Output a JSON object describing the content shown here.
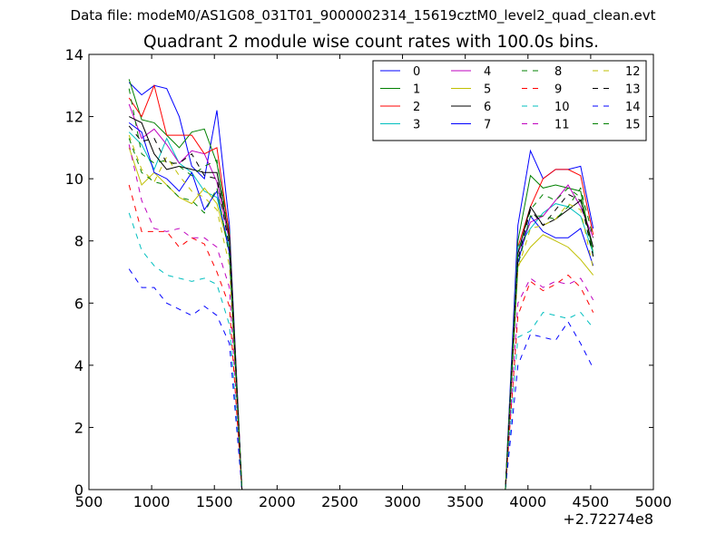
{
  "header": {
    "data_file": "Data file: modeM0/AS1G08_031T01_9000002314_15619cztM0_level2_quad_clean.evt"
  },
  "chart_data": {
    "type": "line",
    "title": "Quadrant 2 module wise count rates with 100.0s bins.",
    "xlabel": "",
    "ylabel": "",
    "xlim": [
      500,
      5000
    ],
    "ylim": [
      0,
      14
    ],
    "x_offset_label": "+2.72274e8",
    "xticks": [
      500,
      1000,
      1500,
      2000,
      2500,
      3000,
      3500,
      4000,
      4500,
      5000
    ],
    "yticks": [
      0,
      2,
      4,
      6,
      8,
      10,
      12,
      14
    ],
    "grid": false,
    "legend_position": "top-right",
    "legend_columns": 4,
    "x": [
      820,
      920,
      1020,
      1120,
      1220,
      1320,
      1420,
      1520,
      1620,
      1720,
      1820,
      3820,
      3920,
      4020,
      4120,
      4220,
      4320,
      4420,
      4520
    ],
    "series": [
      {
        "name": "0",
        "color": "#0000ff",
        "dash": "solid",
        "values": [
          13.1,
          12.7,
          13.0,
          12.9,
          12.0,
          10.4,
          10.0,
          12.2,
          8.5,
          0.0,
          0.0,
          0.0,
          8.5,
          10.9,
          10.0,
          10.3,
          10.3,
          10.4,
          8.4
        ]
      },
      {
        "name": "1",
        "color": "#008000",
        "dash": "solid",
        "values": [
          13.2,
          11.9,
          11.8,
          11.4,
          11.0,
          11.5,
          11.6,
          10.5,
          8.3,
          0.0,
          0.0,
          0.0,
          8.0,
          10.1,
          9.7,
          9.8,
          9.7,
          9.6,
          7.6
        ]
      },
      {
        "name": "2",
        "color": "#ff0000",
        "dash": "solid",
        "values": [
          12.6,
          12.0,
          13.0,
          11.4,
          11.4,
          11.4,
          10.8,
          11.0,
          8.2,
          0.0,
          0.0,
          0.0,
          7.8,
          9.1,
          10.0,
          10.3,
          10.3,
          10.1,
          8.2
        ]
      },
      {
        "name": "3",
        "color": "#00bfbf",
        "dash": "solid",
        "values": [
          11.5,
          11.1,
          10.3,
          11.3,
          10.5,
          10.2,
          9.6,
          9.4,
          7.8,
          0.0,
          0.0,
          0.0,
          7.8,
          8.4,
          8.9,
          9.2,
          9.1,
          8.8,
          7.6
        ]
      },
      {
        "name": "4",
        "color": "#bf00bf",
        "dash": "solid",
        "values": [
          12.4,
          11.3,
          11.6,
          11.1,
          10.5,
          10.9,
          10.8,
          9.9,
          8.0,
          0.0,
          0.0,
          0.0,
          7.6,
          8.6,
          8.8,
          9.3,
          9.8,
          9.1,
          8.1
        ]
      },
      {
        "name": "5",
        "color": "#bfbf00",
        "dash": "solid",
        "values": [
          11.0,
          9.8,
          10.2,
          9.8,
          9.4,
          9.2,
          9.7,
          9.2,
          7.7,
          0.0,
          0.0,
          0.0,
          7.2,
          7.8,
          8.2,
          8.0,
          7.8,
          7.4,
          6.9
        ]
      },
      {
        "name": "6",
        "color": "#000000",
        "dash": "solid",
        "values": [
          12.0,
          11.8,
          10.8,
          10.3,
          10.4,
          10.3,
          10.2,
          10.2,
          8.1,
          0.0,
          0.0,
          0.0,
          7.6,
          9.1,
          8.5,
          8.7,
          9.0,
          9.3,
          7.8
        ]
      },
      {
        "name": "7",
        "color": "#0000ff",
        "dash": "solid",
        "values": [
          11.8,
          11.5,
          10.2,
          10.0,
          9.6,
          10.2,
          9.0,
          9.6,
          7.6,
          0.0,
          0.0,
          0.0,
          7.3,
          8.8,
          8.3,
          8.1,
          8.1,
          8.4,
          7.2
        ]
      },
      {
        "name": "8",
        "color": "#008000",
        "dash": "dashed",
        "values": [
          12.9,
          10.8,
          10.5,
          10.6,
          10.4,
          10.1,
          10.4,
          10.6,
          8.0,
          0.0,
          0.0,
          0.0,
          7.6,
          9.0,
          9.5,
          9.3,
          9.7,
          9.4,
          7.5
        ]
      },
      {
        "name": "9",
        "color": "#ff0000",
        "dash": "dashed",
        "values": [
          9.8,
          8.3,
          8.3,
          8.3,
          7.8,
          8.1,
          7.9,
          7.0,
          5.9,
          0.0,
          0.0,
          0.0,
          5.6,
          6.7,
          6.4,
          6.6,
          6.9,
          6.5,
          5.7
        ]
      },
      {
        "name": "10",
        "color": "#00bfbf",
        "dash": "dashed",
        "values": [
          8.9,
          7.7,
          7.2,
          6.9,
          6.8,
          6.7,
          6.8,
          6.6,
          5.3,
          0.0,
          0.0,
          0.0,
          4.9,
          5.1,
          5.7,
          5.6,
          5.5,
          5.7,
          5.2
        ]
      },
      {
        "name": "11",
        "color": "#bf00bf",
        "dash": "dashed",
        "values": [
          11.1,
          9.3,
          8.4,
          8.3,
          8.4,
          8.1,
          8.1,
          7.8,
          6.5,
          0.0,
          0.0,
          0.0,
          6.0,
          6.8,
          6.5,
          6.7,
          6.6,
          6.8,
          6.1
        ]
      },
      {
        "name": "12",
        "color": "#bfbf00",
        "dash": "dashed",
        "values": [
          11.4,
          10.3,
          9.9,
          10.7,
          10.1,
          9.6,
          9.4,
          9.0,
          7.2,
          0.0,
          0.0,
          0.0,
          7.1,
          8.4,
          8.5,
          8.7,
          9.2,
          9.0,
          7.1
        ]
      },
      {
        "name": "13",
        "color": "#000000",
        "dash": "dashed",
        "values": [
          11.7,
          11.2,
          11.3,
          10.5,
          10.5,
          10.8,
          10.1,
          10.0,
          7.8,
          0.0,
          0.0,
          0.0,
          7.4,
          9.0,
          8.5,
          9.0,
          9.5,
          9.3,
          7.5
        ]
      },
      {
        "name": "14",
        "color": "#0000ff",
        "dash": "dashed",
        "values": [
          7.1,
          6.5,
          6.5,
          6.0,
          5.8,
          5.6,
          5.9,
          5.6,
          4.7,
          0.0,
          0.0,
          0.0,
          4.0,
          5.0,
          4.9,
          4.8,
          5.4,
          4.7,
          3.9
        ]
      },
      {
        "name": "15",
        "color": "#008000",
        "dash": "dashed",
        "values": [
          11.3,
          10.2,
          9.9,
          9.8,
          9.4,
          9.3,
          8.9,
          9.7,
          7.5,
          0.0,
          0.0,
          0.0,
          7.2,
          8.8,
          8.8,
          8.7,
          9.1,
          9.7,
          8.1
        ]
      }
    ]
  }
}
